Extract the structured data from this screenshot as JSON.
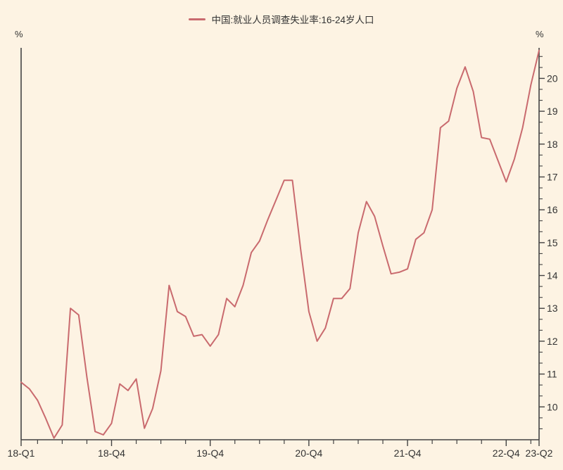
{
  "legend": {
    "label": "中国:就业人员调查失业率:16-24岁人口"
  },
  "axes": {
    "y_unit_left": "%",
    "y_unit_right": "%"
  },
  "chart_data": {
    "type": "line",
    "title": "",
    "series_name": "中国:就业人员调查失业率:16-24岁人口",
    "unit": "%",
    "x_frequency": "monthly",
    "x_range_labels": [
      "18-Q1",
      "23-Q2"
    ],
    "values": [
      10.75,
      10.55,
      10.2,
      9.65,
      9.05,
      9.45,
      13.0,
      12.8,
      10.9,
      9.25,
      9.15,
      9.5,
      10.7,
      10.5,
      10.85,
      9.35,
      9.95,
      11.1,
      13.7,
      12.9,
      12.75,
      12.15,
      12.2,
      11.85,
      12.2,
      13.3,
      13.05,
      13.7,
      14.7,
      15.05,
      15.7,
      16.3,
      16.9,
      16.9,
      14.8,
      12.9,
      12.0,
      12.4,
      13.3,
      13.3,
      13.6,
      15.3,
      16.25,
      15.8,
      14.9,
      14.05,
      14.1,
      14.2,
      15.1,
      15.3,
      16.0,
      18.5,
      18.7,
      19.7,
      20.35,
      19.6,
      18.2,
      18.15,
      17.5,
      16.85,
      17.55,
      18.5,
      19.8,
      20.85
    ],
    "x_tick_labels": [
      {
        "label": "18-Q1",
        "index": 0
      },
      {
        "label": "18-Q4",
        "index": 11
      },
      {
        "label": "19-Q4",
        "index": 23
      },
      {
        "label": "20-Q4",
        "index": 35
      },
      {
        "label": "21-Q4",
        "index": 47
      },
      {
        "label": "22-Q4",
        "index": 59
      },
      {
        "label": "23-Q2",
        "index": 63
      }
    ],
    "x_minor_tick_every_months": 3,
    "y_ticks": [
      10,
      11,
      12,
      13,
      14,
      15,
      16,
      17,
      18,
      19,
      20
    ],
    "y_minor_divisions_per_unit": 3,
    "ylim": [
      9.0,
      20.93
    ],
    "grid": false,
    "legend_position": "top-center",
    "colors": {
      "line": "#c96a6e",
      "background": "#fdf3e3",
      "axis": "#434343",
      "text": "#333333"
    }
  }
}
